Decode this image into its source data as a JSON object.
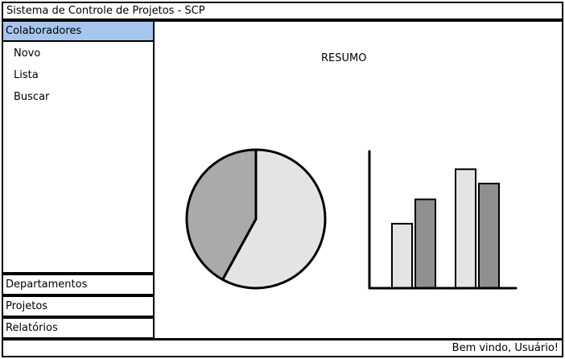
{
  "app": {
    "title": "Sistema de Controle de Projetos - SCP"
  },
  "sidebar": {
    "active_section": "Colaboradores",
    "sub_items": [
      "Novo",
      "Lista",
      "Buscar"
    ],
    "nav_items": [
      "Departamentos",
      "Projetos",
      "Relatórios"
    ]
  },
  "main": {
    "title": "RESUMO"
  },
  "status": {
    "welcome": "Bem vindo, Usuário!"
  },
  "chart_data": [
    {
      "type": "pie",
      "slices": [
        {
          "value": 58,
          "color": "#e4e4e4"
        },
        {
          "value": 42,
          "color": "#aaaaaa"
        }
      ]
    },
    {
      "type": "bar",
      "groups": [
        {
          "values": [
            45,
            62
          ],
          "colors": [
            "#e4e4e4",
            "#8f8f8f"
          ]
        },
        {
          "values": [
            83,
            73
          ],
          "colors": [
            "#e4e4e4",
            "#8f8f8f"
          ]
        }
      ],
      "ylim": [
        0,
        100
      ]
    }
  ]
}
